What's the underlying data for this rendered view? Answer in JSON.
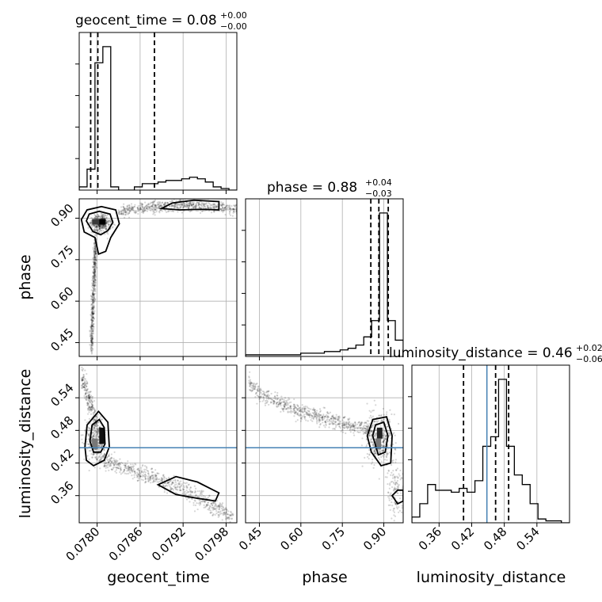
{
  "chart_data": {
    "type": "corner",
    "parameters": [
      "geocent_time",
      "phase",
      "luminosity_distance"
    ],
    "titles": [
      {
        "param": "geocent_time",
        "main": "geocent_time = 0.08",
        "plus": "+0.00",
        "minus": "−0.00"
      },
      {
        "param": "phase",
        "main": "phase = 0.88",
        "plus": "+0.04",
        "minus": "−0.03"
      },
      {
        "param": "luminosity_distance",
        "main": "luminosity_distance = 0.46",
        "plus": "+0.02",
        "minus": "−0.06"
      }
    ],
    "axes": {
      "geocent_time": {
        "range": [
          0.07775,
          0.07995
        ],
        "ticks": [
          0.078,
          0.0786,
          0.0792,
          0.0798
        ],
        "tick_labels": [
          "0.0780",
          "0.0786",
          "0.0792",
          "0.0798"
        ]
      },
      "phase": {
        "range": [
          0.4,
          0.97
        ],
        "ticks": [
          0.45,
          0.6,
          0.75,
          0.9
        ],
        "tick_labels": [
          "0.45",
          "0.60",
          "0.75",
          "0.90"
        ]
      },
      "luminosity_distance": {
        "range": [
          0.31,
          0.6
        ],
        "ticks": [
          0.36,
          0.42,
          0.48,
          0.54
        ],
        "tick_labels": [
          "0.36",
          "0.42",
          "0.48",
          "0.54"
        ]
      }
    },
    "histograms": {
      "geocent_time": {
        "bin_edges": [
          0.07775,
          0.07786,
          0.07797,
          0.07808,
          0.07819,
          0.0783,
          0.07841,
          0.07852,
          0.07863,
          0.07874,
          0.07885,
          0.07896,
          0.07907,
          0.07918,
          0.07929,
          0.0794,
          0.07951,
          0.07962,
          0.07973,
          0.07984,
          0.07995
        ],
        "counts": [
          2,
          13,
          79,
          89,
          2,
          0,
          0,
          2,
          4,
          4,
          5,
          6,
          6,
          7,
          8,
          7,
          5,
          2,
          1,
          0
        ],
        "quantiles": [
          0.07791,
          0.07801,
          0.0788
        ]
      },
      "phase": {
        "bin_edges": [
          0.4,
          0.4285,
          0.457,
          0.4855,
          0.514,
          0.5425,
          0.571,
          0.5995,
          0.628,
          0.6565,
          0.685,
          0.7135,
          0.742,
          0.7705,
          0.799,
          0.8275,
          0.856,
          0.8845,
          0.913,
          0.9415,
          0.97
        ],
        "counts": [
          1,
          1,
          1,
          1,
          1,
          1,
          1,
          2,
          2,
          2,
          3,
          3,
          4,
          5,
          7,
          12,
          22,
          88,
          22,
          10
        ],
        "quantiles": [
          0.853,
          0.882,
          0.916
        ]
      },
      "luminosity_distance": {
        "bin_edges": [
          0.31,
          0.3245,
          0.339,
          0.3535,
          0.368,
          0.3825,
          0.397,
          0.4115,
          0.426,
          0.4405,
          0.455,
          0.4695,
          0.484,
          0.4985,
          0.513,
          0.5275,
          0.542,
          0.5565,
          0.5705,
          0.585,
          0.6
        ],
        "counts": [
          3,
          10,
          20,
          17,
          17,
          16,
          18,
          16,
          22,
          40,
          45,
          75,
          40,
          25,
          20,
          10,
          2,
          1,
          1,
          0
        ],
        "quantiles": [
          0.405,
          0.464,
          0.488
        ]
      }
    },
    "truths": {
      "luminosity_distance": 0.448
    },
    "grid": true
  }
}
